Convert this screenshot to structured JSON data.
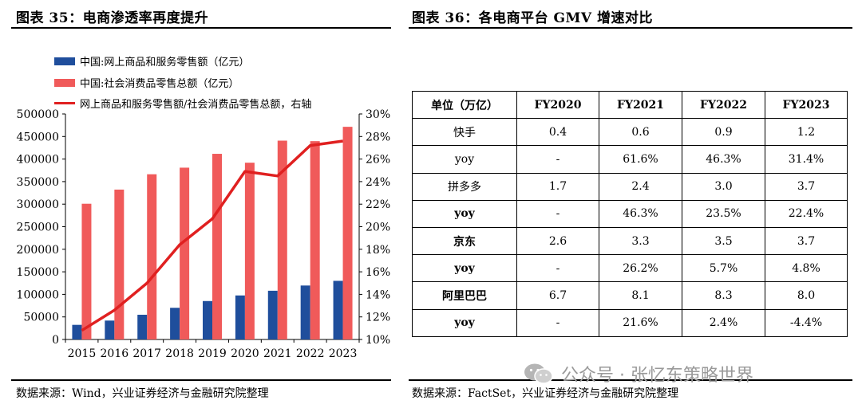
{
  "left_panel": {
    "title": "图表 35：电商渗透率再度提升",
    "source": "数据来源：Wind，兴业证券经济与金融研究院整理"
  },
  "right_panel": {
    "title": "图表 36：各电商平台 GMV 增速对比",
    "source": "数据来源：FactSet，兴业证券经济与金融研究院整理"
  },
  "watermark": {
    "text": "公众号 · 张忆东策略世界",
    "icon": "wechat-icon"
  },
  "colors": {
    "online": "#1f4e9c",
    "total": "#f05a5a",
    "ratio": "#e02020"
  },
  "chart_data": {
    "type": "bar",
    "categories": [
      "2015",
      "2016",
      "2017",
      "2018",
      "2019",
      "2020",
      "2021",
      "2022",
      "2023"
    ],
    "series": [
      {
        "name": "中国:网上商品和服务零售额（亿元）",
        "type": "bar",
        "axis": "left",
        "values": [
          32400,
          41900,
          54800,
          70200,
          85200,
          97600,
          108000,
          119600,
          130000
        ]
      },
      {
        "name": "中国:社会消费品零售总额（亿元）",
        "type": "bar",
        "axis": "left",
        "values": [
          300900,
          332300,
          366300,
          380900,
          411600,
          391900,
          440800,
          439700,
          471500
        ]
      },
      {
        "name": "网上商品和服务零售额/社会消费品零售总额，右轴",
        "type": "line",
        "axis": "right",
        "values": [
          10.8,
          12.6,
          15.0,
          18.4,
          20.7,
          24.9,
          24.5,
          27.2,
          27.6
        ]
      }
    ],
    "y_left": {
      "min": 0,
      "max": 500000,
      "ticks": [
        "0",
        "50000",
        "100000",
        "150000",
        "200000",
        "250000",
        "300000",
        "350000",
        "400000",
        "450000",
        "500000"
      ]
    },
    "y_right": {
      "min": 10,
      "max": 30,
      "ticks": [
        "10%",
        "12%",
        "14%",
        "16%",
        "18%",
        "20%",
        "22%",
        "24%",
        "26%",
        "28%",
        "30%"
      ]
    },
    "grid": false,
    "legend_position": "top-left"
  },
  "table": {
    "headers": [
      "单位（万亿）",
      "FY2020",
      "FY2021",
      "FY2022",
      "FY2023"
    ],
    "rows": [
      {
        "cells": [
          "快手",
          "0.4",
          "0.6",
          "0.9",
          "1.2"
        ],
        "bold": false
      },
      {
        "cells": [
          "yoy",
          "-",
          "61.6%",
          "46.3%",
          "31.4%"
        ],
        "bold": false
      },
      {
        "cells": [
          "拼多多",
          "1.7",
          "2.4",
          "3.0",
          "3.7"
        ],
        "bold": false
      },
      {
        "cells": [
          "yoy",
          "-",
          "46.3%",
          "23.5%",
          "22.4%"
        ],
        "bold": true
      },
      {
        "cells": [
          "京东",
          "2.6",
          "3.3",
          "3.5",
          "3.7"
        ],
        "bold": true
      },
      {
        "cells": [
          "yoy",
          "-",
          "26.2%",
          "5.7%",
          "4.8%"
        ],
        "bold": true
      },
      {
        "cells": [
          "阿里巴巴",
          "6.7",
          "8.1",
          "8.3",
          "8.0"
        ],
        "bold": true
      },
      {
        "cells": [
          "yoy",
          "-",
          "21.6%",
          "2.4%",
          "-4.4%"
        ],
        "bold": true
      }
    ]
  }
}
